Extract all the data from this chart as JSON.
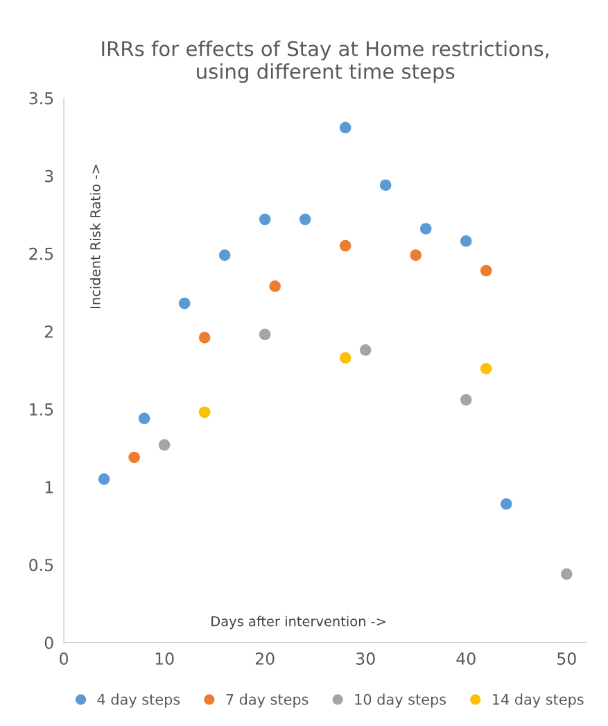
{
  "chart_data": {
    "type": "scatter",
    "title": "IRRs for effects of Stay at Home restrictions,\nusing different time steps",
    "xlabel": "Days after intervention ->",
    "ylabel": "Incident Risk Ratio ->",
    "series": [
      {
        "name": "4 day steps",
        "color": "#5b9bd5",
        "x": [
          4,
          8,
          12,
          16,
          20,
          24,
          28,
          32,
          36,
          40,
          44
        ],
        "values": [
          1.05,
          1.44,
          2.18,
          2.49,
          2.72,
          2.72,
          3.31,
          2.94,
          2.66,
          2.58,
          0.89
        ]
      },
      {
        "name": "7 day steps",
        "color": "#ed7d31",
        "x": [
          7,
          14,
          21,
          28,
          35,
          42
        ],
        "values": [
          1.19,
          1.96,
          2.29,
          2.55,
          2.49,
          2.39
        ]
      },
      {
        "name": "10 day steps",
        "color": "#a5a5a5",
        "x": [
          10,
          20,
          30,
          40,
          50
        ],
        "values": [
          1.27,
          1.98,
          1.88,
          1.56,
          0.44
        ]
      },
      {
        "name": "14 day steps",
        "color": "#ffc000",
        "x": [
          14,
          28,
          42
        ],
        "values": [
          1.48,
          1.83,
          1.76
        ]
      }
    ],
    "xlim": [
      0,
      52
    ],
    "xticks": [
      0,
      10,
      20,
      30,
      40,
      50
    ],
    "ylim": [
      0,
      3.5
    ],
    "yticks": [
      0,
      0.5,
      1,
      1.5,
      2,
      2.5,
      3,
      3.5
    ],
    "marker": "circle",
    "grid": false,
    "legend": "bottom"
  }
}
